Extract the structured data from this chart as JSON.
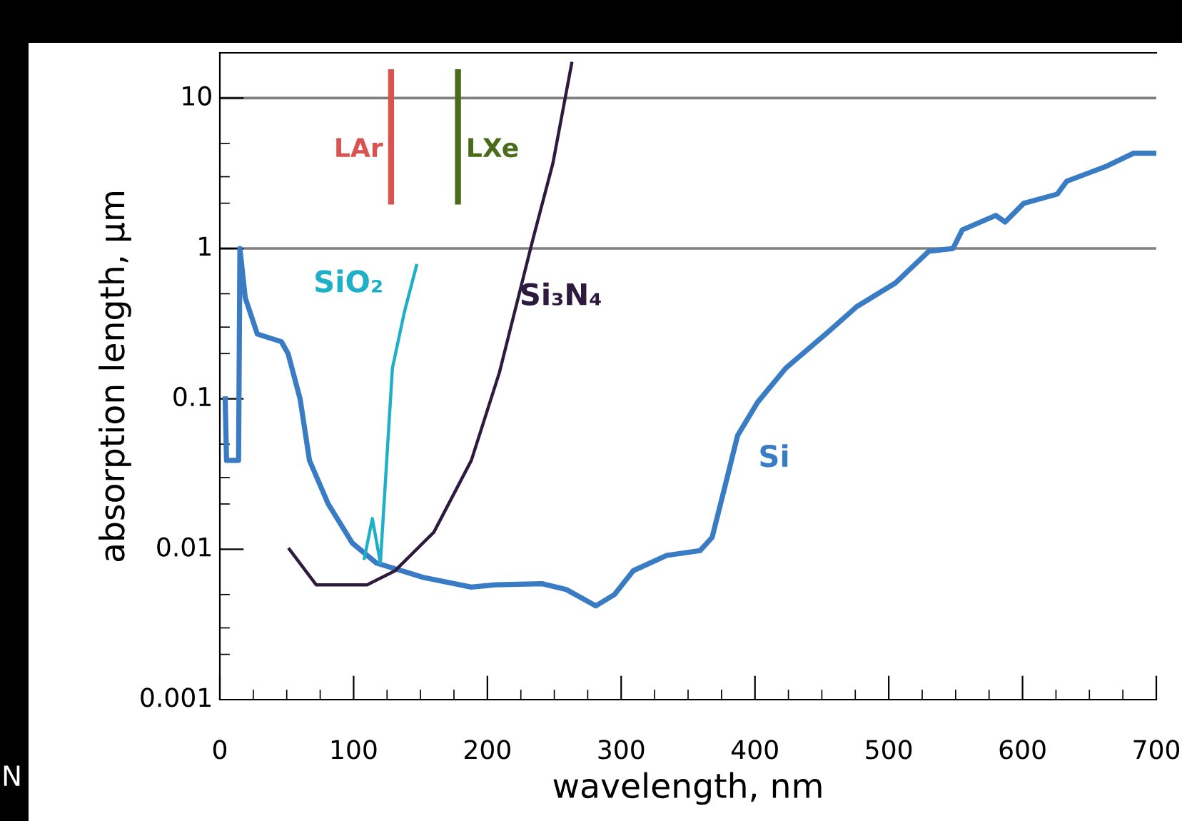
{
  "chart_data": {
    "type": "line",
    "xlabel": "wavelength, nm",
    "ylabel": "absorption length, µm",
    "log": "y",
    "xlim": [
      0,
      700
    ],
    "xticks": [
      0,
      100,
      200,
      300,
      400,
      500,
      600,
      700
    ],
    "ylim": [
      0.001,
      20
    ],
    "yticks": [
      0.001,
      0.01,
      0.1,
      1,
      10
    ],
    "grid": false,
    "legend": false,
    "marker": "none",
    "line_style": "solid",
    "series": [
      {
        "name": "Si",
        "color": "#3a7cc4",
        "x": [
          4,
          5,
          10,
          14,
          15,
          19,
          28,
          46,
          51,
          60,
          67,
          81,
          99,
          117,
          152,
          188,
          206,
          241,
          259,
          281,
          295,
          309,
          334,
          359,
          368,
          377,
          387,
          402,
          423,
          455,
          476,
          505,
          530,
          548,
          555,
          580,
          587,
          601,
          626,
          633,
          662,
          683,
          699
        ],
        "values": [
          0.1,
          0.039,
          0.039,
          0.039,
          1.0,
          0.47,
          0.27,
          0.24,
          0.2,
          0.1,
          0.039,
          0.02,
          0.011,
          0.0081,
          0.0065,
          0.0056,
          0.0058,
          0.0059,
          0.0054,
          0.0042,
          0.005,
          0.0072,
          0.0091,
          0.0098,
          0.012,
          0.025,
          0.057,
          0.095,
          0.16,
          0.28,
          0.41,
          0.59,
          0.96,
          1.0,
          1.33,
          1.66,
          1.5,
          2.0,
          2.3,
          2.8,
          3.5,
          4.3,
          4.3
        ]
      },
      {
        "name": "SiO₂",
        "color": "#1fb0c8",
        "x": [
          108,
          114,
          120,
          129,
          138,
          147
        ],
        "values": [
          0.0087,
          0.016,
          0.0081,
          0.16,
          0.38,
          0.77
        ]
      },
      {
        "name": "Si₃N₄",
        "color": "#2d1a3e",
        "x": [
          52,
          72,
          110,
          131,
          160,
          188,
          209,
          234,
          249,
          263
        ],
        "values": [
          0.01,
          0.0058,
          0.0058,
          0.0072,
          0.013,
          0.039,
          0.15,
          1.15,
          3.7,
          17
        ]
      }
    ],
    "ref_lines": [
      {
        "axis": "y",
        "value": 10,
        "color": "#808080"
      },
      {
        "axis": "y",
        "value": 1,
        "color": "#808080"
      },
      {
        "axis": "x",
        "value": 128,
        "label": "LAr",
        "color": "#d9534f"
      },
      {
        "axis": "x",
        "value": 178,
        "label": "LXe",
        "color": "#4a6b1a"
      }
    ],
    "annotations": [
      "N"
    ]
  }
}
